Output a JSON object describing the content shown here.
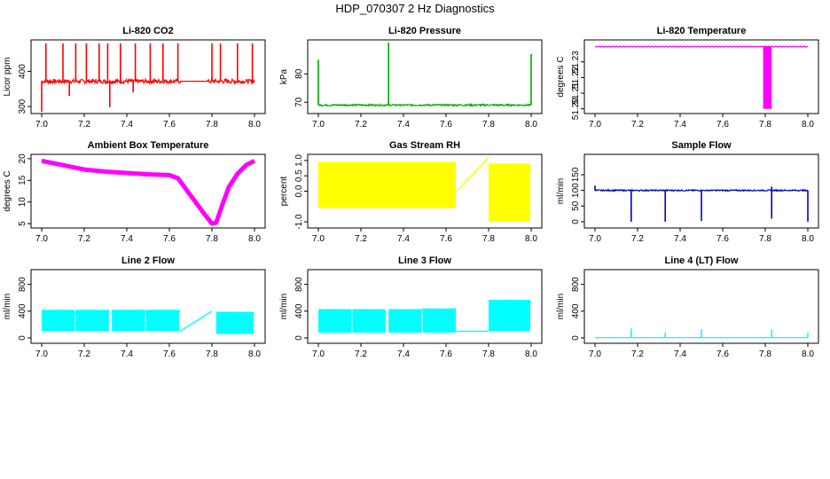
{
  "page": {
    "title": "HDP_070307  2 Hz Diagnostics"
  },
  "chart_data": [
    {
      "id": "co2",
      "type": "line",
      "title": "Li-820 CO2",
      "xlabel": "",
      "ylabel": "Licor ppm",
      "color": "#ff0000",
      "xlim": [
        6.95,
        8.05
      ],
      "ylim": [
        280,
        490
      ],
      "xticks": [
        7.0,
        7.2,
        7.4,
        7.6,
        7.8,
        8.0
      ],
      "xtick_labels": [
        "7.0",
        "7.2",
        "7.4",
        "7.6",
        "7.8",
        "8.0"
      ],
      "yticks": [
        300,
        400
      ],
      "ytick_labels": [
        "300",
        "400"
      ],
      "series": [
        {
          "name": "CO2",
          "kind": "noise_band",
          "base": 372,
          "amp": 6,
          "gap": [
            7.65,
            7.78
          ],
          "spikes": [
            [
              7.02,
              480
            ],
            [
              7.1,
              480
            ],
            [
              7.16,
              480
            ],
            [
              7.21,
              480
            ],
            [
              7.27,
              480
            ],
            [
              7.31,
              480
            ],
            [
              7.37,
              480
            ],
            [
              7.44,
              480
            ],
            [
              7.51,
              480
            ],
            [
              7.57,
              480
            ],
            [
              7.64,
              480
            ],
            [
              7.8,
              480
            ],
            [
              7.84,
              480
            ],
            [
              7.92,
              480
            ],
            [
              7.99,
              480
            ]
          ],
          "dips": [
            [
              7.0,
              285
            ],
            [
              7.13,
              330
            ],
            [
              7.32,
              298
            ],
            [
              7.43,
              340
            ]
          ]
        }
      ]
    },
    {
      "id": "pressure",
      "type": "line",
      "title": "Li-820 Pressure",
      "xlabel": "",
      "ylabel": "kPa",
      "color": "#00aa00",
      "xlim": [
        6.95,
        8.05
      ],
      "ylim": [
        66,
        92
      ],
      "xticks": [
        7.0,
        7.2,
        7.4,
        7.6,
        7.8,
        8.0
      ],
      "xtick_labels": [
        "7.0",
        "7.2",
        "7.4",
        "7.6",
        "7.8",
        "8.0"
      ],
      "yticks": [
        70,
        80
      ],
      "ytick_labels": [
        "70",
        "80"
      ],
      "series": [
        {
          "name": "Pressure",
          "kind": "noise_band",
          "base": 69,
          "amp": 0.3,
          "gap": null,
          "spikes": [
            [
              7.0,
              85
            ],
            [
              7.33,
              91
            ],
            [
              8.0,
              87
            ]
          ],
          "dips": []
        }
      ]
    },
    {
      "id": "licor_temp",
      "type": "line",
      "title": "Li-820 Temperature",
      "xlabel": "",
      "ylabel": "degrees C",
      "color": "#ff00ff",
      "xlim": [
        6.95,
        8.05
      ],
      "ylim": [
        51.197,
        51.244
      ],
      "xticks": [
        7.0,
        7.2,
        7.4,
        7.6,
        7.8,
        8.0
      ],
      "xtick_labels": [
        "7.0",
        "7.2",
        "7.4",
        "7.6",
        "7.8",
        "8.0"
      ],
      "yticks": [
        51.2,
        51.21,
        51.22,
        51.23
      ],
      "ytick_labels": [
        "51.20",
        "51.21",
        "51.22",
        "51.23"
      ],
      "series": [
        {
          "name": "Temperature",
          "kind": "flat_block",
          "base": 51.24,
          "block": [
            7.79,
            7.83
          ],
          "block_low": 51.2
        }
      ]
    },
    {
      "id": "box_temp",
      "type": "line",
      "title": "Ambient Box Temperature",
      "xlabel": "",
      "ylabel": "degrees C",
      "color": "#ff00ff",
      "xlim": [
        6.95,
        8.05
      ],
      "ylim": [
        4,
        21
      ],
      "xticks": [
        7.0,
        7.2,
        7.4,
        7.6,
        7.8,
        8.0
      ],
      "xtick_labels": [
        "7.0",
        "7.2",
        "7.4",
        "7.6",
        "7.8",
        "8.0"
      ],
      "yticks": [
        5,
        10,
        15,
        20
      ],
      "ytick_labels": [
        "5",
        "10",
        "15",
        "20"
      ],
      "series": [
        {
          "name": "Box Temp",
          "kind": "curve",
          "points": [
            [
              7.0,
              19.5
            ],
            [
              7.1,
              18.5
            ],
            [
              7.2,
              17.5
            ],
            [
              7.3,
              17.0
            ],
            [
              7.4,
              16.7
            ],
            [
              7.5,
              16.4
            ],
            [
              7.6,
              16.2
            ],
            [
              7.64,
              15.5
            ],
            [
              7.7,
              11.5
            ],
            [
              7.76,
              7.5
            ],
            [
              7.8,
              5.0
            ],
            [
              7.82,
              5.2
            ],
            [
              7.85,
              9.5
            ],
            [
              7.88,
              13.5
            ],
            [
              7.92,
              16.5
            ],
            [
              7.96,
              18.5
            ],
            [
              8.0,
              19.5
            ]
          ]
        }
      ]
    },
    {
      "id": "rh",
      "type": "line",
      "title": "Gas Stream RH",
      "xlabel": "",
      "ylabel": "percent",
      "color": "#ffff00",
      "xlim": [
        6.95,
        8.05
      ],
      "ylim": [
        -1.2,
        1.2
      ],
      "xticks": [
        7.0,
        7.2,
        7.4,
        7.6,
        7.8,
        8.0
      ],
      "xtick_labels": [
        "7.0",
        "7.2",
        "7.4",
        "7.6",
        "7.8",
        "8.0"
      ],
      "yticks": [
        -1.0,
        0.0,
        0.5,
        1.0
      ],
      "ytick_labels": [
        "-1.0",
        "0.0",
        "0.5",
        "1.0"
      ],
      "series": [
        {
          "name": "RH",
          "kind": "band",
          "segments": [
            [
              7.0,
              7.65,
              -0.55,
              0.95
            ],
            [
              7.8,
              8.0,
              -1.0,
              0.9
            ]
          ],
          "ramp": [
            [
              7.65,
              0.0
            ],
            [
              7.8,
              1.1
            ]
          ]
        }
      ]
    },
    {
      "id": "sample_flow",
      "type": "line",
      "title": "Sample Flow",
      "xlabel": "",
      "ylabel": "ml/min",
      "color": "#0000cc",
      "xlim": [
        6.95,
        8.05
      ],
      "ylim": [
        -20,
        215
      ],
      "xticks": [
        7.0,
        7.2,
        7.4,
        7.6,
        7.8,
        8.0
      ],
      "xtick_labels": [
        "7.0",
        "7.2",
        "7.4",
        "7.6",
        "7.8",
        "8.0"
      ],
      "yticks": [
        0,
        50,
        100,
        150
      ],
      "ytick_labels": [
        "0",
        "50",
        "100",
        "150"
      ],
      "series": [
        {
          "name": "Flow",
          "kind": "noise_band",
          "base": 100,
          "amp": 2,
          "gap": null,
          "spikes": [
            [
              7.0,
              115
            ],
            [
              7.83,
              112
            ]
          ],
          "dips": [
            [
              7.17,
              0
            ],
            [
              7.33,
              0
            ],
            [
              7.5,
              2
            ],
            [
              7.83,
              10
            ],
            [
              8.0,
              0
            ]
          ]
        }
      ]
    },
    {
      "id": "line2",
      "type": "line",
      "title": "Line 2 Flow",
      "xlabel": "",
      "ylabel": "ml/min",
      "color": "#00ffff",
      "xlim": [
        6.95,
        8.05
      ],
      "ylim": [
        -80,
        1020
      ],
      "xticks": [
        7.0,
        7.2,
        7.4,
        7.6,
        7.8,
        8.0
      ],
      "xtick_labels": [
        "7.0",
        "7.2",
        "7.4",
        "7.6",
        "7.8",
        "8.0"
      ],
      "yticks": [
        0,
        400,
        800
      ],
      "ytick_labels": [
        "0",
        "400",
        "800"
      ],
      "series": [
        {
          "name": "Line 2",
          "kind": "band",
          "segments": [
            [
              7.0,
              7.16,
              100,
              420
            ],
            [
              7.16,
              7.32,
              100,
              420
            ],
            [
              7.33,
              7.49,
              100,
              420
            ],
            [
              7.49,
              7.65,
              100,
              420
            ],
            [
              7.82,
              8.0,
              60,
              390
            ]
          ],
          "ramp": [
            [
              7.65,
              100
            ],
            [
              7.8,
              400
            ]
          ]
        }
      ]
    },
    {
      "id": "line3",
      "type": "line",
      "title": "Line 3 Flow",
      "xlabel": "",
      "ylabel": "ml/min",
      "color": "#00ffff",
      "xlim": [
        6.95,
        8.05
      ],
      "ylim": [
        -80,
        1020
      ],
      "xticks": [
        7.0,
        7.2,
        7.4,
        7.6,
        7.8,
        8.0
      ],
      "xtick_labels": [
        "7.0",
        "7.2",
        "7.4",
        "7.6",
        "7.8",
        "8.0"
      ],
      "yticks": [
        0,
        400,
        800
      ],
      "ytick_labels": [
        "0",
        "400",
        "800"
      ],
      "series": [
        {
          "name": "Line 3",
          "kind": "band",
          "segments": [
            [
              7.0,
              7.16,
              80,
              430
            ],
            [
              7.16,
              7.32,
              80,
              430
            ],
            [
              7.33,
              7.49,
              80,
              430
            ],
            [
              7.49,
              7.65,
              80,
              440
            ],
            [
              7.8,
              8.0,
              100,
              570
            ]
          ],
          "ramp": [
            [
              7.65,
              100
            ],
            [
              7.8,
              100
            ]
          ]
        }
      ]
    },
    {
      "id": "line4",
      "type": "line",
      "title": "Line 4 (LT) Flow",
      "xlabel": "",
      "ylabel": "ml/min",
      "color": "#00ffff",
      "xlim": [
        6.95,
        8.05
      ],
      "ylim": [
        -80,
        1020
      ],
      "xticks": [
        7.0,
        7.2,
        7.4,
        7.6,
        7.8,
        8.0
      ],
      "xtick_labels": [
        "7.0",
        "7.2",
        "7.4",
        "7.6",
        "7.8",
        "8.0"
      ],
      "yticks": [
        0,
        400,
        800
      ],
      "ytick_labels": [
        "0",
        "400",
        "800"
      ],
      "series": [
        {
          "name": "Line 4",
          "kind": "noise_band",
          "base": 5,
          "amp": 1,
          "gap": null,
          "spikes": [
            [
              7.17,
              140
            ],
            [
              7.33,
              80
            ],
            [
              7.5,
              130
            ],
            [
              7.83,
              120
            ],
            [
              8.0,
              80
            ]
          ],
          "dips": []
        }
      ]
    }
  ]
}
